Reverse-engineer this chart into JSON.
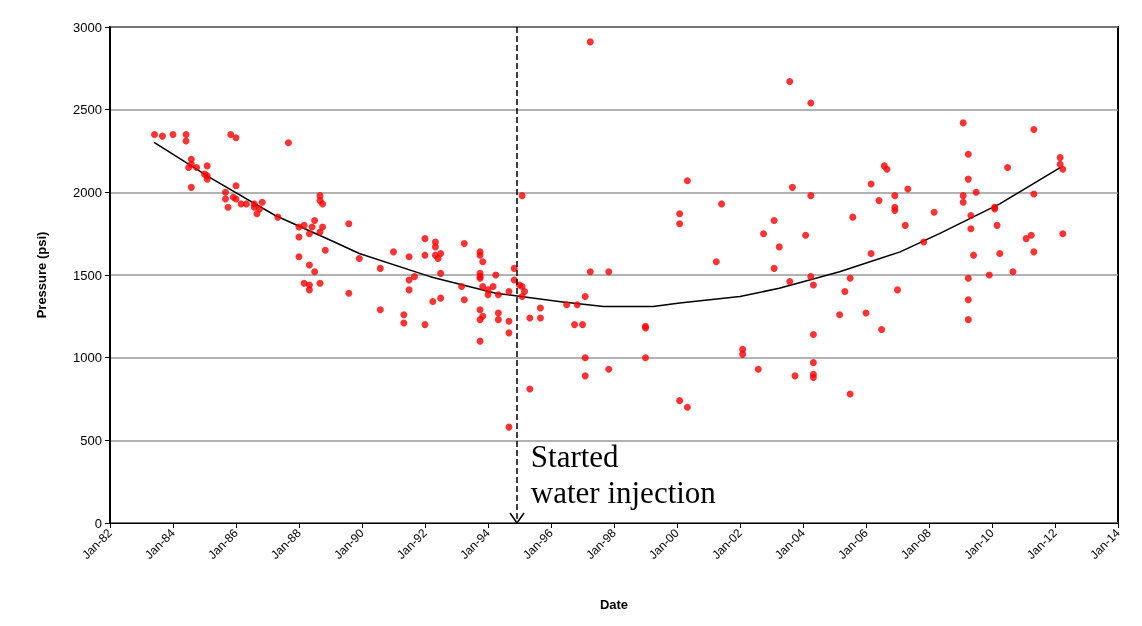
{
  "chart_data": {
    "type": "scatter",
    "xlabel": "Date",
    "ylabel": "Pressure (psi)",
    "xlim": [
      "1982-01",
      "2014-01"
    ],
    "xticks": [
      {
        "value": "1982-01",
        "label": "Jan-82"
      },
      {
        "value": "1984-01",
        "label": "Jan-84"
      },
      {
        "value": "1986-01",
        "label": "Jan-86"
      },
      {
        "value": "1988-01",
        "label": "Jan-88"
      },
      {
        "value": "1990-01",
        "label": "Jan-90"
      },
      {
        "value": "1992-01",
        "label": "Jan-92"
      },
      {
        "value": "1994-01",
        "label": "Jan-94"
      },
      {
        "value": "1996-01",
        "label": "Jan-96"
      },
      {
        "value": "1998-01",
        "label": "Jan-98"
      },
      {
        "value": "2000-01",
        "label": "Jan-00"
      },
      {
        "value": "2002-01",
        "label": "Jan-02"
      },
      {
        "value": "2004-01",
        "label": "Jan-04"
      },
      {
        "value": "2006-01",
        "label": "Jan-06"
      },
      {
        "value": "2008-01",
        "label": "Jan-08"
      },
      {
        "value": "2010-01",
        "label": "Jan-10"
      },
      {
        "value": "2012-01",
        "label": "Jan-12"
      },
      {
        "value": "2014-01",
        "label": "Jan-14"
      }
    ],
    "ylim": [
      0,
      3000
    ],
    "yticks": [
      0,
      500,
      1000,
      1500,
      2000,
      2500,
      3000
    ],
    "grid": "y",
    "marker": "circle",
    "series": [
      {
        "color": "#ff0000",
        "x": [
          "1983-06",
          "1983-09",
          "1984-01",
          "1984-06",
          "1984-06",
          "1984-08",
          "1984-08",
          "1984-07",
          "1984-10",
          "1985-02",
          "1985-01",
          "1985-02",
          "1985-02",
          "1984-08",
          "1985-11",
          "1986-01",
          "1986-01",
          "1985-09",
          "1985-09",
          "1985-12",
          "1986-01",
          "1985-10",
          "1986-03",
          "1986-05",
          "1986-08",
          "1986-08",
          "1986-11",
          "1986-09",
          "1986-10",
          "1987-05",
          "1987-09",
          "1988-01",
          "1988-03",
          "1988-05",
          "1988-01",
          "1988-07",
          "1988-06",
          "1988-09",
          "1988-09",
          "1988-10",
          "1988-09",
          "1988-10",
          "1988-11",
          "1988-01",
          "1988-05",
          "1988-07",
          "1988-03",
          "1988-05",
          "1988-05",
          "1988-09",
          "1989-08",
          "1989-08",
          "1989-12",
          "1990-08",
          "1990-08",
          "1991-01",
          "1991-07",
          "1991-07",
          "1991-09",
          "1991-07",
          "1991-05",
          "1991-05",
          "1992-01",
          "1992-01",
          "1992-05",
          "1992-05",
          "1992-05",
          "1992-07",
          "1992-06",
          "1992-07",
          "1992-04",
          "1992-07",
          "1992-01",
          "1993-04",
          "1993-03",
          "1993-04",
          "1993-10",
          "1993-10",
          "1993-11",
          "1993-10",
          "1993-10",
          "1993-10",
          "1993-11",
          "1994-01",
          "1994-01",
          "1994-03",
          "1994-04",
          "1994-05",
          "1993-10",
          "1993-11",
          "1993-10",
          "1994-05",
          "1994-05",
          "1994-09",
          "1994-09",
          "1994-09",
          "1993-10",
          "1994-11",
          "1994-11",
          "1995-01",
          "1995-02",
          "1995-03",
          "1995-02",
          "1995-02",
          "1995-05",
          "1995-09",
          "1995-09",
          "1995-05",
          "1994-09",
          "1997-04",
          "2000-05",
          "2000-02",
          "2000-02",
          "2001-06",
          "2003-02",
          "2002-10",
          "2003-04",
          "2001-04",
          "2003-02",
          "1997-04",
          "1997-11",
          "1997-02",
          "1996-07",
          "1996-11",
          "1996-10",
          "1997-01",
          "1999-01",
          "1999-01",
          "1997-02",
          "1999-01",
          "1997-02",
          "1997-11",
          "2002-02",
          "2002-02",
          "2002-08",
          "2000-02",
          "2000-05",
          "2003-08",
          "2004-04",
          "2006-08",
          "2006-09",
          "2003-09",
          "2004-04",
          "2006-03",
          "2007-05",
          "2006-12",
          "2006-06",
          "2006-12",
          "2006-12",
          "2008-03",
          "2005-08",
          "2007-04",
          "2004-02",
          "2007-11",
          "2006-03",
          "2003-08",
          "2004-04",
          "2004-05",
          "2005-07",
          "2005-05",
          "2007-01",
          "2005-03",
          "2006-01",
          "2006-07",
          "2004-05",
          "2004-05",
          "2003-10",
          "2004-05",
          "2004-05",
          "2005-07",
          "2009-02",
          "2011-05",
          "2009-04",
          "2012-03",
          "2012-03",
          "2012-04",
          "2010-07",
          "2009-04",
          "2009-07",
          "2009-02",
          "2011-05",
          "2009-02",
          "2010-02",
          "2010-02",
          "2009-05",
          "2009-05",
          "2010-03",
          "2011-02",
          "2011-04",
          "2012-04",
          "2009-06",
          "2010-04",
          "2011-05",
          "2009-12",
          "2010-09",
          "2009-04",
          "2009-04",
          "2009-04"
        ],
        "values": [
          2350,
          2340,
          2350,
          2350,
          2310,
          2200,
          2170,
          2150,
          2150,
          2160,
          2110,
          2100,
          2080,
          2030,
          2350,
          2330,
          2040,
          2000,
          1960,
          1970,
          1960,
          1910,
          1930,
          1930,
          1930,
          1910,
          1940,
          1870,
          1900,
          1850,
          2300,
          1790,
          1800,
          1750,
          1730,
          1830,
          1790,
          1980,
          1950,
          1930,
          1760,
          1790,
          1650,
          1610,
          1560,
          1520,
          1450,
          1440,
          1410,
          1450,
          1810,
          1390,
          1600,
          1540,
          1290,
          1640,
          1610,
          1470,
          1490,
          1410,
          1260,
          1210,
          1720,
          1620,
          1700,
          1670,
          1620,
          1630,
          1600,
          1510,
          1340,
          1360,
          1200,
          1690,
          1430,
          1350,
          1640,
          1620,
          1580,
          1510,
          1490,
          1480,
          1430,
          1410,
          1380,
          1430,
          1500,
          1380,
          1290,
          1250,
          1230,
          1270,
          1230,
          1400,
          1220,
          1150,
          1100,
          1540,
          1470,
          1440,
          1430,
          1400,
          1370,
          1980,
          1240,
          1240,
          1300,
          810,
          580,
          2910,
          2070,
          1870,
          1810,
          1930,
          1830,
          1750,
          1670,
          1580,
          1540,
          1520,
          1520,
          1370,
          1320,
          1320,
          1200,
          1200,
          1190,
          1180,
          1000,
          1000,
          890,
          930,
          1050,
          1020,
          930,
          740,
          700,
          2670,
          2540,
          2160,
          2140,
          2030,
          1980,
          2050,
          2020,
          1980,
          1950,
          1910,
          1890,
          1880,
          1850,
          1800,
          1740,
          1700,
          1630,
          1460,
          1490,
          1440,
          1480,
          1400,
          1410,
          1260,
          1270,
          1170,
          1140,
          970,
          890,
          900,
          880,
          780,
          2420,
          2380,
          2230,
          2210,
          2170,
          2140,
          2150,
          2080,
          2000,
          1980,
          1990,
          1940,
          1910,
          1900,
          1860,
          1780,
          1800,
          1720,
          1740,
          1750,
          1620,
          1630,
          1640,
          1500,
          1520,
          1480,
          1350,
          1230
        ]
      },
      {
        "type": "line",
        "color": "#000000",
        "marker": "none",
        "x": [
          "1983-06",
          "1985-03",
          "1987-04",
          "1989-01",
          "1989-12",
          "1992-03",
          "1994-04",
          "1996-04",
          "1997-09",
          "1999-04",
          "2000-02",
          "2002-01",
          "2003-04",
          "2005-03",
          "2007-02",
          "2008-05",
          "2010-04",
          "2012-03"
        ],
        "values": [
          2300,
          2090,
          1860,
          1710,
          1630,
          1490,
          1390,
          1340,
          1310,
          1310,
          1330,
          1370,
          1420,
          1520,
          1640,
          1750,
          1930,
          2150
        ]
      }
    ],
    "ref_lines": [
      {
        "axis": "x",
        "value": "1994-12",
        "color": "#000000",
        "line_style": "dashed"
      }
    ],
    "annotations": [
      {
        "text": "Started water injection",
        "x": "1994-12",
        "y": 0
      }
    ]
  }
}
